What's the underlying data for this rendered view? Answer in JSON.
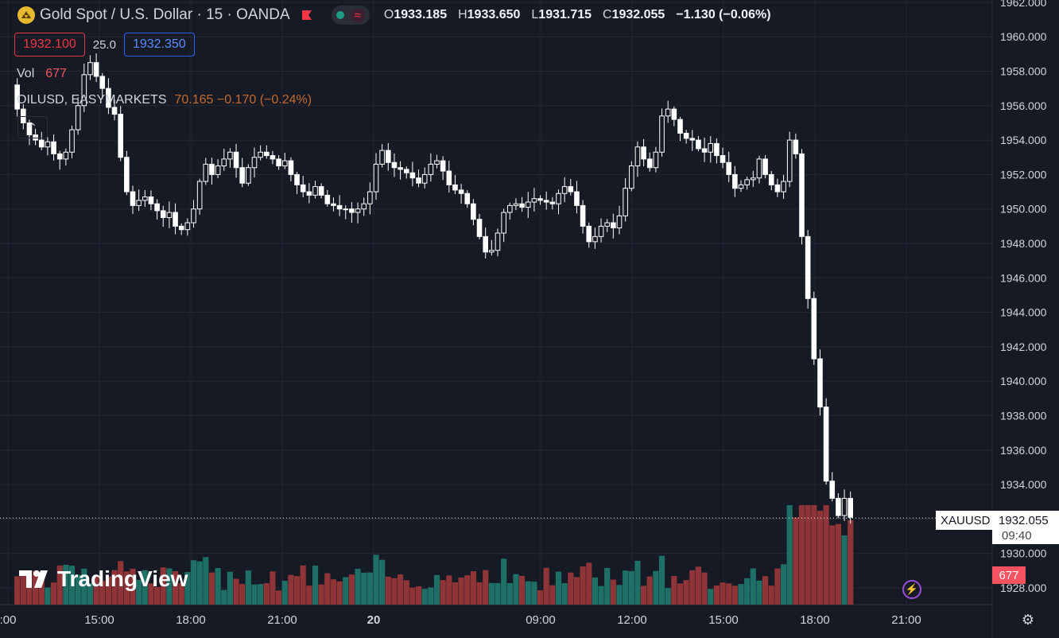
{
  "header": {
    "symbol_title": "Gold Spot / U.S. Dollar · 15 · OANDA",
    "icon": "gold-icon",
    "ohlc": {
      "o_label": "O",
      "o": "1933.185",
      "h_label": "H",
      "h": "1933.650",
      "l_label": "L",
      "l": "1931.715",
      "c_label": "C",
      "c": "1932.055",
      "change": "−1.130 (−0.06%)"
    }
  },
  "prices": {
    "sell": "1932.100",
    "spread": "25.0",
    "buy": "1932.350"
  },
  "volume_legend": {
    "label": "Vol",
    "value": "677"
  },
  "compare": {
    "symbol": "OILUSD, EASYMARKETS",
    "value": "70.165 −0.170 (−0.24%)"
  },
  "branding": {
    "logo_text": "TradingView"
  },
  "price_tags": {
    "symbol": "XAUUSD",
    "last": "1932.055",
    "countdown": "09:40",
    "volume": "677"
  },
  "colors": {
    "background": "#161a25",
    "up_volume": "#1e6f66",
    "down_volume": "#8f3437",
    "candle": "#ffffff",
    "grid": "#232733",
    "axis_text": "#d1d4dc"
  },
  "chart_data": {
    "type": "candlestick",
    "title": "Gold Spot / U.S. Dollar · 15 · OANDA",
    "ylim": [
      1927,
      1962
    ],
    "y_ticks": [
      "1962.000",
      "1960.000",
      "1958.000",
      "1956.000",
      "1954.000",
      "1952.000",
      "1950.000",
      "1948.000",
      "1946.000",
      "1944.000",
      "1942.000",
      "1940.000",
      "1938.000",
      "1936.000",
      "1934.000",
      "1932.000",
      "1930.000",
      "1928.000"
    ],
    "x_ticks": [
      ":00",
      "15:00",
      "18:00",
      "21:00",
      "20",
      "09:00",
      "12:00",
      "15:00",
      "18:00",
      "21:00"
    ],
    "close_path": [
      1957.2,
      1955.8,
      1955.0,
      1954.3,
      1954.0,
      1953.6,
      1953.9,
      1953.2,
      1952.9,
      1953.3,
      1954.6,
      1956.0,
      1957.8,
      1958.5,
      1957.7,
      1957.0,
      1955.9,
      1955.5,
      1953.0,
      1951.0,
      1950.2,
      1950.5,
      1950.7,
      1950.3,
      1949.9,
      1949.5,
      1949.8,
      1949.0,
      1948.8,
      1949.2,
      1950.0,
      1951.6,
      1952.6,
      1952.0,
      1952.5,
      1952.9,
      1953.3,
      1952.4,
      1951.5,
      1952.4,
      1953.0,
      1953.3,
      1953.1,
      1952.9,
      1952.5,
      1952.8,
      1952.0,
      1951.4,
      1951.0,
      1950.8,
      1951.3,
      1950.8,
      1950.3,
      1950.2,
      1950.0,
      1950.0,
      1949.8,
      1950.0,
      1950.3,
      1951.0,
      1952.6,
      1953.4,
      1952.7,
      1952.4,
      1952.3,
      1952.1,
      1951.8,
      1951.5,
      1952.0,
      1952.6,
      1952.8,
      1952.2,
      1951.4,
      1951.1,
      1950.9,
      1950.3,
      1949.4,
      1948.4,
      1947.5,
      1947.6,
      1948.6,
      1949.8,
      1950.2,
      1950.3,
      1950.1,
      1950.4,
      1950.6,
      1950.5,
      1950.4,
      1950.3,
      1950.9,
      1951.3,
      1951.0,
      1950.2,
      1949.0,
      1948.1,
      1948.4,
      1949.0,
      1949.2,
      1948.9,
      1949.6,
      1951.2,
      1952.5,
      1953.6,
      1952.9,
      1952.4,
      1953.3,
      1955.4,
      1955.8,
      1955.2,
      1954.4,
      1954.1,
      1954.0,
      1953.5,
      1953.3,
      1953.8,
      1953.1,
      1952.7,
      1952.0,
      1951.2,
      1951.4,
      1951.7,
      1951.8,
      1952.9,
      1952.0,
      1951.4,
      1951.0,
      1951.6,
      1954.0,
      1953.2,
      1948.4,
      1944.8,
      1941.3,
      1938.5,
      1934.2,
      1933.2,
      1932.2,
      1933.2,
      1932.1
    ],
    "volume_note": "red = down bar volume, teal = up bar volume; final bar volume 677"
  }
}
